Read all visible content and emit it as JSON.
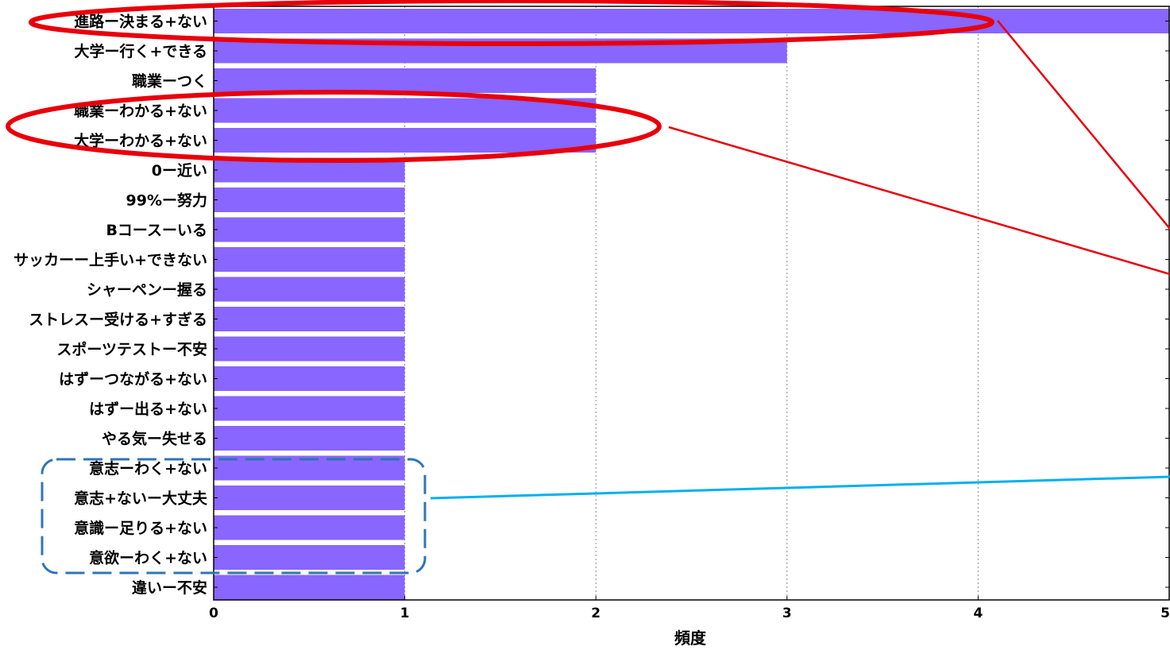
{
  "chart_data": {
    "type": "bar",
    "orientation": "horizontal",
    "title": "",
    "xlabel": "頻度",
    "ylabel": "",
    "xlim": [
      0,
      5
    ],
    "x_ticks": [
      "0",
      "1",
      "2",
      "3",
      "4",
      "5"
    ],
    "grid": "vertical-dotted",
    "bar_color": "#8866FF",
    "categories": [
      "進路ー決まる+ない",
      "大学ー行く+できる",
      "職業ーつく",
      "職業ーわかる+ない",
      "大学ーわかる+ない",
      "0ー近い",
      "99%ー努力",
      "Bコースーいる",
      "サッカーー上手い+できない",
      "シャーペンー握る",
      "ストレスー受ける+すぎる",
      "スポーツテストー不安",
      "はずーつながる+ない",
      "はずー出る+ない",
      "やる気ー失せる",
      "意志ーわく+ない",
      "意志+ないー大丈夫",
      "意識ー足りる+ない",
      "意欲ーわく+ない",
      "違いー不安"
    ],
    "values": [
      5,
      3,
      2,
      2,
      2,
      1,
      1,
      1,
      1,
      1,
      1,
      1,
      1,
      1,
      1,
      1,
      1,
      1,
      1,
      1
    ],
    "annotations": {
      "red_ellipse_color": "#E8000B",
      "blue_dashed_box_color": "#2E75B6",
      "cyan_line_color": "#00B0F0",
      "red_ellipse_groups": [
        [
          0
        ],
        [
          3,
          4
        ]
      ],
      "blue_dashed_group": [
        15,
        16,
        17,
        18
      ]
    }
  }
}
